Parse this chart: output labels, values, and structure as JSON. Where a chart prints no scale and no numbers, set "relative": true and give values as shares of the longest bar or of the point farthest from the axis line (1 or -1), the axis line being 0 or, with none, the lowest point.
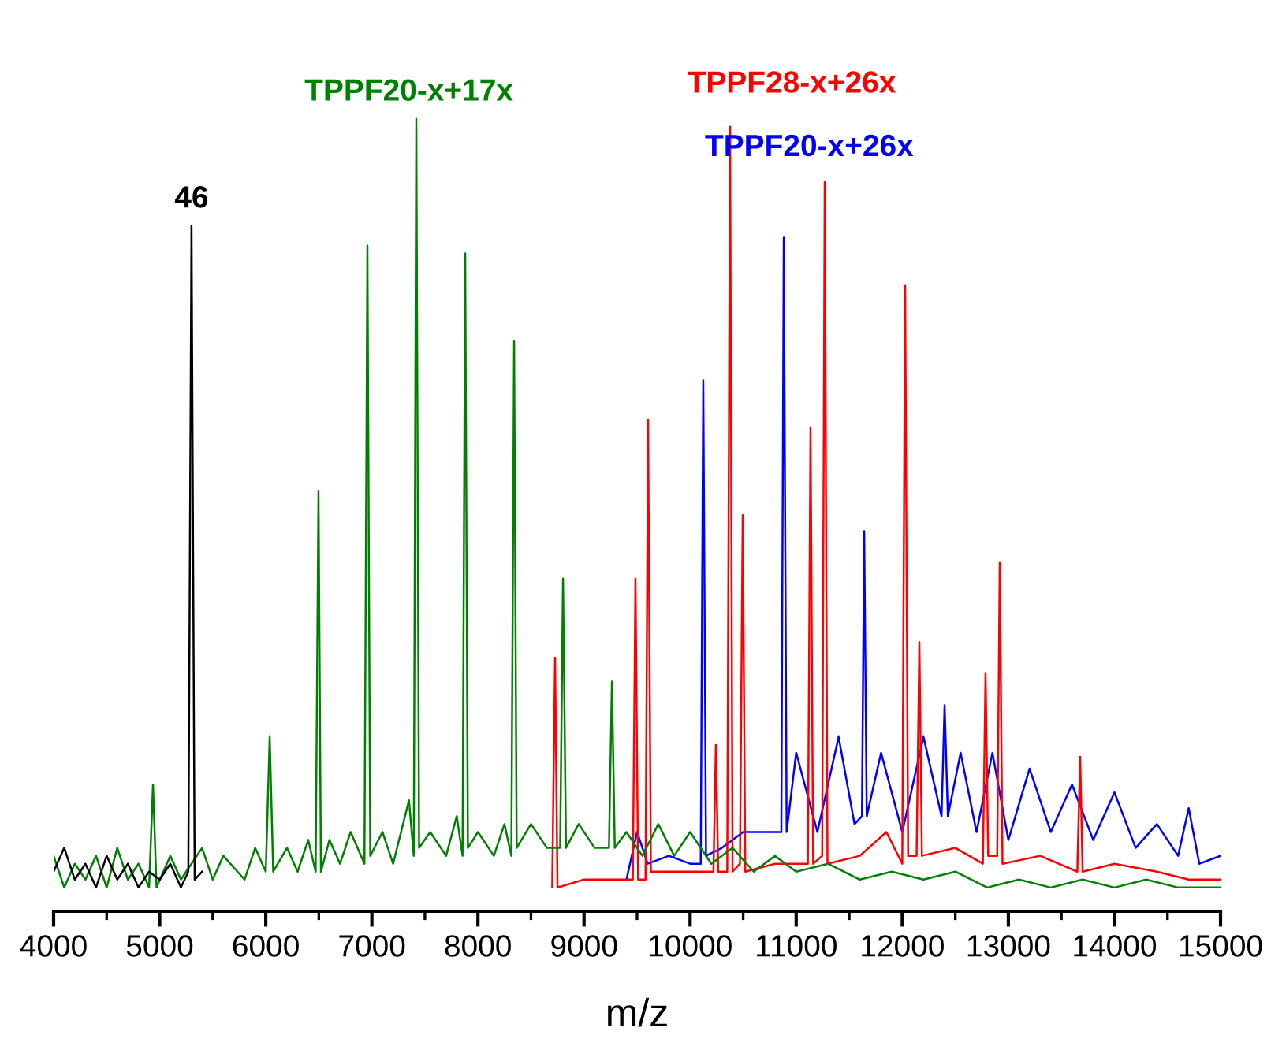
{
  "chart_data": {
    "type": "line",
    "relative": true,
    "xlabel": "m/z",
    "xlim": [
      4000,
      15000
    ],
    "xticks": [
      4000,
      {
        "value": 4500,
        "label": null
      },
      5000,
      {
        "value": 5500,
        "label": null
      },
      6000,
      {
        "value": 6500,
        "label": null
      },
      7000,
      {
        "value": 7500,
        "label": null
      },
      8000,
      {
        "value": 8500,
        "label": null
      },
      9000,
      {
        "value": 9500,
        "label": null
      },
      10000,
      {
        "value": 10500,
        "label": null
      },
      11000,
      {
        "value": 11500,
        "label": null
      },
      12000,
      {
        "value": 12500,
        "label": null
      },
      13000,
      {
        "value": 13500,
        "label": null
      },
      14000,
      {
        "value": 14500,
        "label": null
      },
      15000
    ],
    "grid": false,
    "legend": false,
    "annotations": [
      {
        "text": "46",
        "x": 5300,
        "y": 0.865
      }
    ],
    "series": [
      {
        "name": "TPPF20-x+26x",
        "color": "#0000ff",
        "x": [
          9400,
          9500,
          9600,
          9800,
          10000,
          10100,
          10124,
          10150,
          10300,
          10500,
          10700,
          10860,
          10883,
          10910,
          11000,
          11200,
          11400,
          11550,
          11620,
          11641,
          11665,
          11800,
          12000,
          12200,
          12370,
          12399,
          12430,
          12550,
          12700,
          12850,
          13000,
          13200,
          13400,
          13600,
          13800,
          14000,
          14200,
          14400,
          14600,
          14700,
          14800,
          15000
        ],
        "values": [
          0.04,
          0.1,
          0.06,
          0.07,
          0.06,
          0.06,
          0.67,
          0.07,
          0.08,
          0.1,
          0.1,
          0.1,
          0.85,
          0.1,
          0.2,
          0.1,
          0.22,
          0.11,
          0.12,
          0.48,
          0.12,
          0.2,
          0.1,
          0.22,
          0.12,
          0.26,
          0.12,
          0.2,
          0.1,
          0.2,
          0.09,
          0.18,
          0.1,
          0.16,
          0.09,
          0.15,
          0.08,
          0.11,
          0.07,
          0.13,
          0.06,
          0.07
        ]
      },
      {
        "name": "TPPF28-x+26x",
        "color": "#ff0000",
        "x": [
          8700,
          8727,
          8750,
          9000,
          9460,
          9485,
          9510,
          9580,
          9604,
          9630,
          9900,
          10220,
          10243,
          10265,
          10350,
          10377,
          10400,
          10470,
          10496,
          10520,
          10800,
          11110,
          11135,
          11160,
          11245,
          11269,
          11295,
          11600,
          11850,
          12000,
          12027,
          12055,
          12135,
          12161,
          12185,
          12500,
          12760,
          12785,
          12810,
          12895,
          12919,
          12945,
          13300,
          13650,
          13677,
          13700,
          14000,
          14400,
          14700,
          15000
        ],
        "values": [
          0.03,
          0.32,
          0.03,
          0.04,
          0.04,
          0.42,
          0.04,
          0.04,
          0.62,
          0.05,
          0.05,
          0.05,
          0.21,
          0.05,
          0.05,
          0.99,
          0.05,
          0.06,
          0.5,
          0.05,
          0.06,
          0.06,
          0.61,
          0.06,
          0.07,
          0.92,
          0.06,
          0.07,
          0.1,
          0.06,
          0.79,
          0.07,
          0.07,
          0.34,
          0.07,
          0.08,
          0.06,
          0.3,
          0.07,
          0.07,
          0.44,
          0.06,
          0.07,
          0.05,
          0.195,
          0.05,
          0.06,
          0.05,
          0.04,
          0.04
        ]
      },
      {
        "name": "TPPF20-x+17x",
        "color": "#008000",
        "x": [
          4000,
          4100,
          4200,
          4300,
          4400,
          4500,
          4600,
          4700,
          4800,
          4900,
          4937,
          4970,
          5100,
          5200,
          5400,
          5500,
          5600,
          5800,
          5900,
          6000,
          6037,
          6070,
          6200,
          6300,
          6400,
          6470,
          6497,
          6520,
          6600,
          6700,
          6800,
          6930,
          6958,
          6985,
          7100,
          7200,
          7350,
          7395,
          7419,
          7445,
          7550,
          7700,
          7800,
          7855,
          7880,
          7905,
          8000,
          8150,
          8250,
          8315,
          8341,
          8365,
          8500,
          8650,
          8775,
          8802,
          8830,
          8950,
          9100,
          9235,
          9263,
          9290,
          9400,
          9550,
          9700,
          9850,
          10000,
          10200,
          10400,
          10600,
          10800,
          11000,
          11300,
          11600,
          11900,
          12200,
          12500,
          12800,
          13100,
          13400,
          13700,
          14000,
          14300,
          14600,
          15000
        ],
        "values": [
          0.07,
          0.03,
          0.06,
          0.04,
          0.07,
          0.03,
          0.08,
          0.04,
          0.06,
          0.03,
          0.16,
          0.03,
          0.07,
          0.04,
          0.08,
          0.04,
          0.07,
          0.04,
          0.08,
          0.05,
          0.22,
          0.05,
          0.08,
          0.05,
          0.09,
          0.05,
          0.53,
          0.05,
          0.09,
          0.06,
          0.1,
          0.06,
          0.84,
          0.07,
          0.1,
          0.06,
          0.14,
          0.07,
          1.0,
          0.08,
          0.1,
          0.07,
          0.12,
          0.07,
          0.83,
          0.08,
          0.1,
          0.07,
          0.11,
          0.07,
          0.72,
          0.08,
          0.11,
          0.08,
          0.08,
          0.42,
          0.08,
          0.11,
          0.08,
          0.08,
          0.29,
          0.08,
          0.1,
          0.07,
          0.11,
          0.07,
          0.1,
          0.06,
          0.08,
          0.05,
          0.07,
          0.05,
          0.06,
          0.04,
          0.05,
          0.04,
          0.05,
          0.03,
          0.04,
          0.03,
          0.04,
          0.03,
          0.04,
          0.03,
          0.03
        ]
      },
      {
        "color": "#000000",
        "x": [
          4000,
          4100,
          4200,
          4300,
          4400,
          4500,
          4600,
          4700,
          4800,
          4900,
          5000,
          5100,
          5200,
          5270,
          5300,
          5330,
          5400
        ],
        "values": [
          0.05,
          0.08,
          0.04,
          0.06,
          0.03,
          0.07,
          0.04,
          0.06,
          0.03,
          0.05,
          0.04,
          0.06,
          0.03,
          0.05,
          0.865,
          0.04,
          0.05
        ]
      }
    ]
  }
}
